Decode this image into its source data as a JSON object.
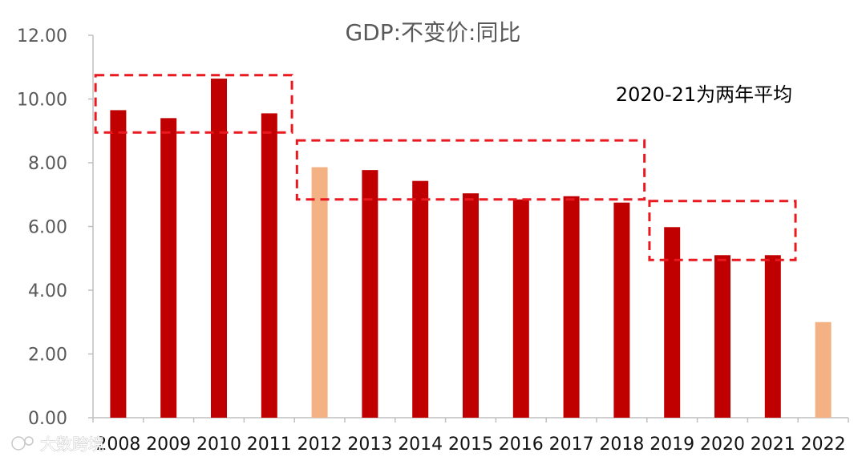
{
  "chart_data": {
    "type": "bar",
    "title": "GDP:不变价:同比",
    "categories": [
      "2008",
      "2009",
      "2010",
      "2011",
      "2012",
      "2013",
      "2014",
      "2015",
      "2016",
      "2017",
      "2018",
      "2019",
      "2020",
      "2021",
      "2022"
    ],
    "values": [
      9.65,
      9.4,
      10.64,
      9.55,
      7.86,
      7.77,
      7.43,
      7.04,
      6.85,
      6.95,
      6.75,
      5.98,
      5.1,
      5.1,
      3.0
    ],
    "highlighted_categories": [
      "2012",
      "2022"
    ],
    "ylim": [
      0,
      12
    ],
    "yticks": [
      "0.00",
      "2.00",
      "4.00",
      "6.00",
      "8.00",
      "10.00",
      "12.00"
    ],
    "xlabel": "",
    "ylabel": "",
    "grid": false,
    "legend": "none",
    "annotation": "2020-21为两年平均",
    "colors": {
      "bar": "#C00000",
      "highlight": "#F4B183",
      "box": "#E8191F",
      "axis": "#BFBFBF"
    },
    "boxes": [
      {
        "categories": [
          "2008",
          "2011"
        ],
        "y_range": [
          8.95,
          10.75
        ]
      },
      {
        "categories": [
          "2012",
          "2018"
        ],
        "y_range": [
          6.85,
          8.7
        ]
      },
      {
        "categories": [
          "2019",
          "2021"
        ],
        "y_range": [
          4.95,
          6.8
        ]
      }
    ]
  },
  "watermark": "大数跨境"
}
